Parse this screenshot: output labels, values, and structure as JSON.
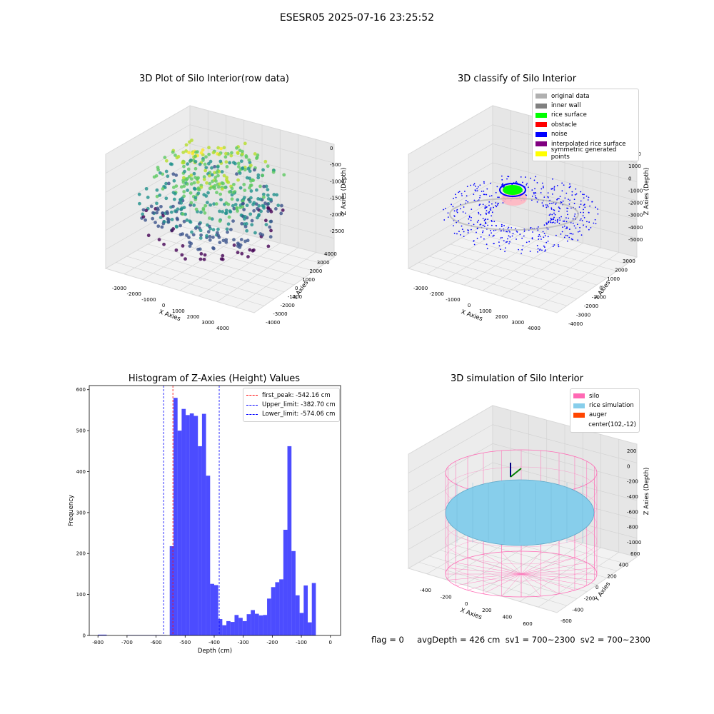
{
  "figure": {
    "suptitle": "ESESR05 2025-07-16 23:25:52",
    "status_line": "flag = 0     avgDepth = 426 cm  sv1 = 700~2300  sv2 = 700~2300"
  },
  "panels": {
    "raw": {
      "title": "3D Plot of Silo Interior(row data)",
      "xlabel": "X Axies",
      "ylabel": "Y Axies",
      "zlabel": "Z Axies (Depth)",
      "xticks": [
        "-3000",
        "-2000",
        "-1000",
        "0",
        "1000",
        "2000",
        "3000",
        "4000"
      ],
      "yticks": [
        "4000",
        "3000",
        "2000",
        "1000",
        "0",
        "-1000",
        "-2000",
        "-3000",
        "-4000"
      ],
      "zticks": [
        "0",
        "-500",
        "-1000",
        "-1500",
        "-2000",
        "-2500"
      ]
    },
    "classify": {
      "title": "3D classify of Silo Interior",
      "xlabel": "X Axies",
      "ylabel": "Y Axies",
      "zlabel": "Z Axies (Depth)",
      "xticks": [
        "-3000",
        "-2000",
        "-1000",
        "0",
        "1000",
        "2000",
        "3000",
        "4000"
      ],
      "yticks": [
        "3000",
        "2000",
        "1000",
        "0",
        "-1000",
        "-2000",
        "-3000",
        "-4000"
      ],
      "zticks": [
        "2000",
        "1000",
        "0",
        "-1000",
        "-2000",
        "-3000",
        "-4000",
        "-5000"
      ],
      "legend": [
        {
          "label": "original data",
          "color": "#b0b0b0"
        },
        {
          "label": "inner wall",
          "color": "#808080"
        },
        {
          "label": "rice surface",
          "color": "#00ff00"
        },
        {
          "label": "obstacle",
          "color": "#ff0000"
        },
        {
          "label": "noise",
          "color": "#0000ff"
        },
        {
          "label": "interpolated rice surface",
          "color": "#800080"
        },
        {
          "label": "symmetric generated points",
          "color": "#ffff00"
        }
      ]
    },
    "histogram": {
      "title": "Histogram of Z-Axies (Height) Values",
      "xlabel": "Depth (cm)",
      "ylabel": "Frequency",
      "legend": [
        {
          "label": "first_peak: -542.16 cm",
          "color": "#ff0000"
        },
        {
          "label": "Upper_limit: -382.70 cm",
          "color": "#0000ff"
        },
        {
          "label": "Lower_limit: -574.06 cm",
          "color": "#0000ff"
        }
      ]
    },
    "simulation": {
      "title": "3D simulation of Silo Interior",
      "xlabel": "X Axies",
      "ylabel": "Y Axies",
      "zlabel": "Z Axies (Depth)",
      "xticks": [
        "-400",
        "-200",
        "0",
        "200",
        "400",
        "600"
      ],
      "yticks": [
        "600",
        "400",
        "200",
        "0",
        "-200",
        "-400",
        "-600"
      ],
      "zticks": [
        "200",
        "0",
        "-200",
        "-400",
        "-600",
        "-800",
        "-1000"
      ],
      "legend": [
        {
          "label": "silo",
          "color": "#ff69b4"
        },
        {
          "label": "rice simulation",
          "color": "#87ceeb"
        },
        {
          "label": "auger",
          "color": "#ff4500"
        },
        {
          "label": "center(102,-12)",
          "color": ""
        }
      ]
    }
  },
  "chart_data": [
    {
      "type": "histogram",
      "title": "Histogram of Z-Axies (Height) Values",
      "xlabel": "Depth (cm)",
      "ylabel": "Frequency",
      "xlim": [
        -830,
        35
      ],
      "ylim": [
        0,
        610
      ],
      "xticks": [
        -800,
        -700,
        -600,
        -500,
        -400,
        -300,
        -200,
        -100,
        0
      ],
      "yticks": [
        0,
        100,
        200,
        300,
        400,
        500,
        600
      ],
      "color": "#0000ff",
      "bins": [
        {
          "x0": -800,
          "x1": -770,
          "count": 2
        },
        {
          "x0": -700,
          "x1": -565,
          "count": 1
        },
        {
          "x0": -553,
          "x1": -540,
          "count": 218
        },
        {
          "x0": -540,
          "x1": -526,
          "count": 580
        },
        {
          "x0": -526,
          "x1": -512,
          "count": 500
        },
        {
          "x0": -512,
          "x1": -498,
          "count": 553
        },
        {
          "x0": -498,
          "x1": -484,
          "count": 538
        },
        {
          "x0": -484,
          "x1": -470,
          "count": 542
        },
        {
          "x0": -470,
          "x1": -456,
          "count": 536
        },
        {
          "x0": -456,
          "x1": -442,
          "count": 462
        },
        {
          "x0": -442,
          "x1": -428,
          "count": 541
        },
        {
          "x0": -428,
          "x1": -414,
          "count": 390
        },
        {
          "x0": -414,
          "x1": -400,
          "count": 126
        },
        {
          "x0": -400,
          "x1": -386,
          "count": 123
        },
        {
          "x0": -386,
          "x1": -372,
          "count": 40
        },
        {
          "x0": -372,
          "x1": -358,
          "count": 25
        },
        {
          "x0": -358,
          "x1": -344,
          "count": 35
        },
        {
          "x0": -344,
          "x1": -330,
          "count": 33
        },
        {
          "x0": -330,
          "x1": -316,
          "count": 50
        },
        {
          "x0": -316,
          "x1": -302,
          "count": 43
        },
        {
          "x0": -302,
          "x1": -288,
          "count": 35
        },
        {
          "x0": -288,
          "x1": -274,
          "count": 52
        },
        {
          "x0": -274,
          "x1": -260,
          "count": 62
        },
        {
          "x0": -260,
          "x1": -246,
          "count": 53
        },
        {
          "x0": -246,
          "x1": -232,
          "count": 49
        },
        {
          "x0": -232,
          "x1": -218,
          "count": 50
        },
        {
          "x0": -218,
          "x1": -204,
          "count": 90
        },
        {
          "x0": -204,
          "x1": -190,
          "count": 118
        },
        {
          "x0": -190,
          "x1": -176,
          "count": 130
        },
        {
          "x0": -176,
          "x1": -162,
          "count": 137
        },
        {
          "x0": -162,
          "x1": -148,
          "count": 258
        },
        {
          "x0": -148,
          "x1": -134,
          "count": 462
        },
        {
          "x0": -134,
          "x1": -120,
          "count": 206
        },
        {
          "x0": -120,
          "x1": -106,
          "count": 98
        },
        {
          "x0": -106,
          "x1": -92,
          "count": 55
        },
        {
          "x0": -92,
          "x1": -78,
          "count": 122
        },
        {
          "x0": -78,
          "x1": -64,
          "count": 32
        },
        {
          "x0": -64,
          "x1": -50,
          "count": 128
        }
      ],
      "vlines": [
        {
          "name": "first_peak",
          "x": -542.16,
          "color": "#ff0000"
        },
        {
          "name": "Upper_limit",
          "x": -382.7,
          "color": "#0000ff"
        },
        {
          "name": "Lower_limit",
          "x": -574.06,
          "color": "#0000ff"
        }
      ]
    }
  ]
}
